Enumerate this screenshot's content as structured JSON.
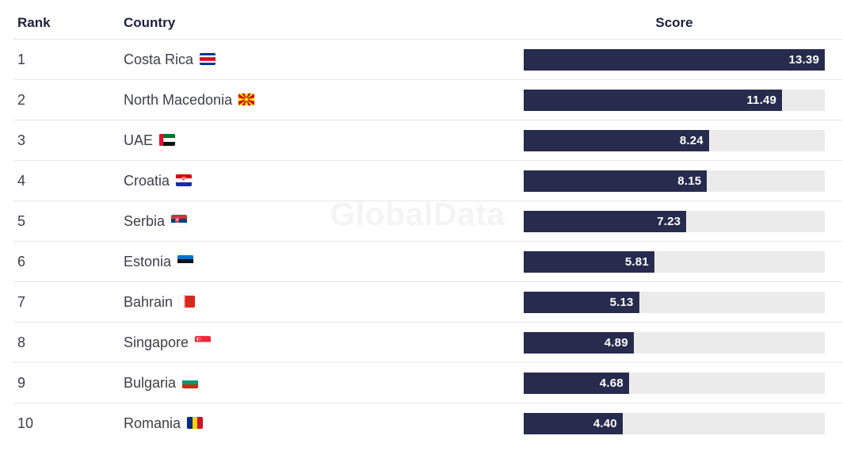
{
  "watermark": "GlobalData",
  "table": {
    "headers": {
      "rank": "Rank",
      "country": "Country",
      "score": "Score"
    },
    "rows": [
      {
        "rank": "1",
        "country": "Costa Rica",
        "flag_icon": "costa-rica-flag",
        "score": "13.39"
      },
      {
        "rank": "2",
        "country": "North Macedonia",
        "flag_icon": "north-macedonia-flag",
        "score": "11.49"
      },
      {
        "rank": "3",
        "country": "UAE",
        "flag_icon": "uae-flag",
        "score": "8.24"
      },
      {
        "rank": "4",
        "country": "Croatia",
        "flag_icon": "croatia-flag",
        "score": "8.15"
      },
      {
        "rank": "5",
        "country": "Serbia",
        "flag_icon": "serbia-flag",
        "score": "7.23"
      },
      {
        "rank": "6",
        "country": "Estonia",
        "flag_icon": "estonia-flag",
        "score": "5.81"
      },
      {
        "rank": "7",
        "country": "Bahrain",
        "flag_icon": "bahrain-flag",
        "score": "5.13"
      },
      {
        "rank": "8",
        "country": "Singapore",
        "flag_icon": "singapore-flag",
        "score": "4.89"
      },
      {
        "rank": "9",
        "country": "Bulgaria",
        "flag_icon": "bulgaria-flag",
        "score": "4.68"
      },
      {
        "rank": "10",
        "country": "Romania",
        "flag_icon": "romania-flag",
        "score": "4.40"
      }
    ]
  },
  "colors": {
    "bar_fill": "#272b4d",
    "bar_track": "#ebebeb",
    "header_text": "#1b2140",
    "body_text": "#3d3f47",
    "separator": "#e7e7e7",
    "score_text": "#ffffff",
    "watermark_text": "#f4f4f4"
  },
  "chart_data": {
    "type": "bar",
    "orientation": "horizontal",
    "title": "",
    "xlabel": "Score",
    "ylabel": "Country",
    "categories": [
      "Costa Rica",
      "North Macedonia",
      "UAE",
      "Croatia",
      "Serbia",
      "Estonia",
      "Bahrain",
      "Singapore",
      "Bulgaria",
      "Romania"
    ],
    "ranks": [
      1,
      2,
      3,
      4,
      5,
      6,
      7,
      8,
      9,
      10
    ],
    "values": [
      13.39,
      11.49,
      8.24,
      8.15,
      7.23,
      5.81,
      5.13,
      4.89,
      4.68,
      4.4
    ],
    "xlim": [
      0,
      13.39
    ],
    "grid": false,
    "legend": false,
    "data_labels": "inside-end",
    "watermark": "GlobalData"
  }
}
